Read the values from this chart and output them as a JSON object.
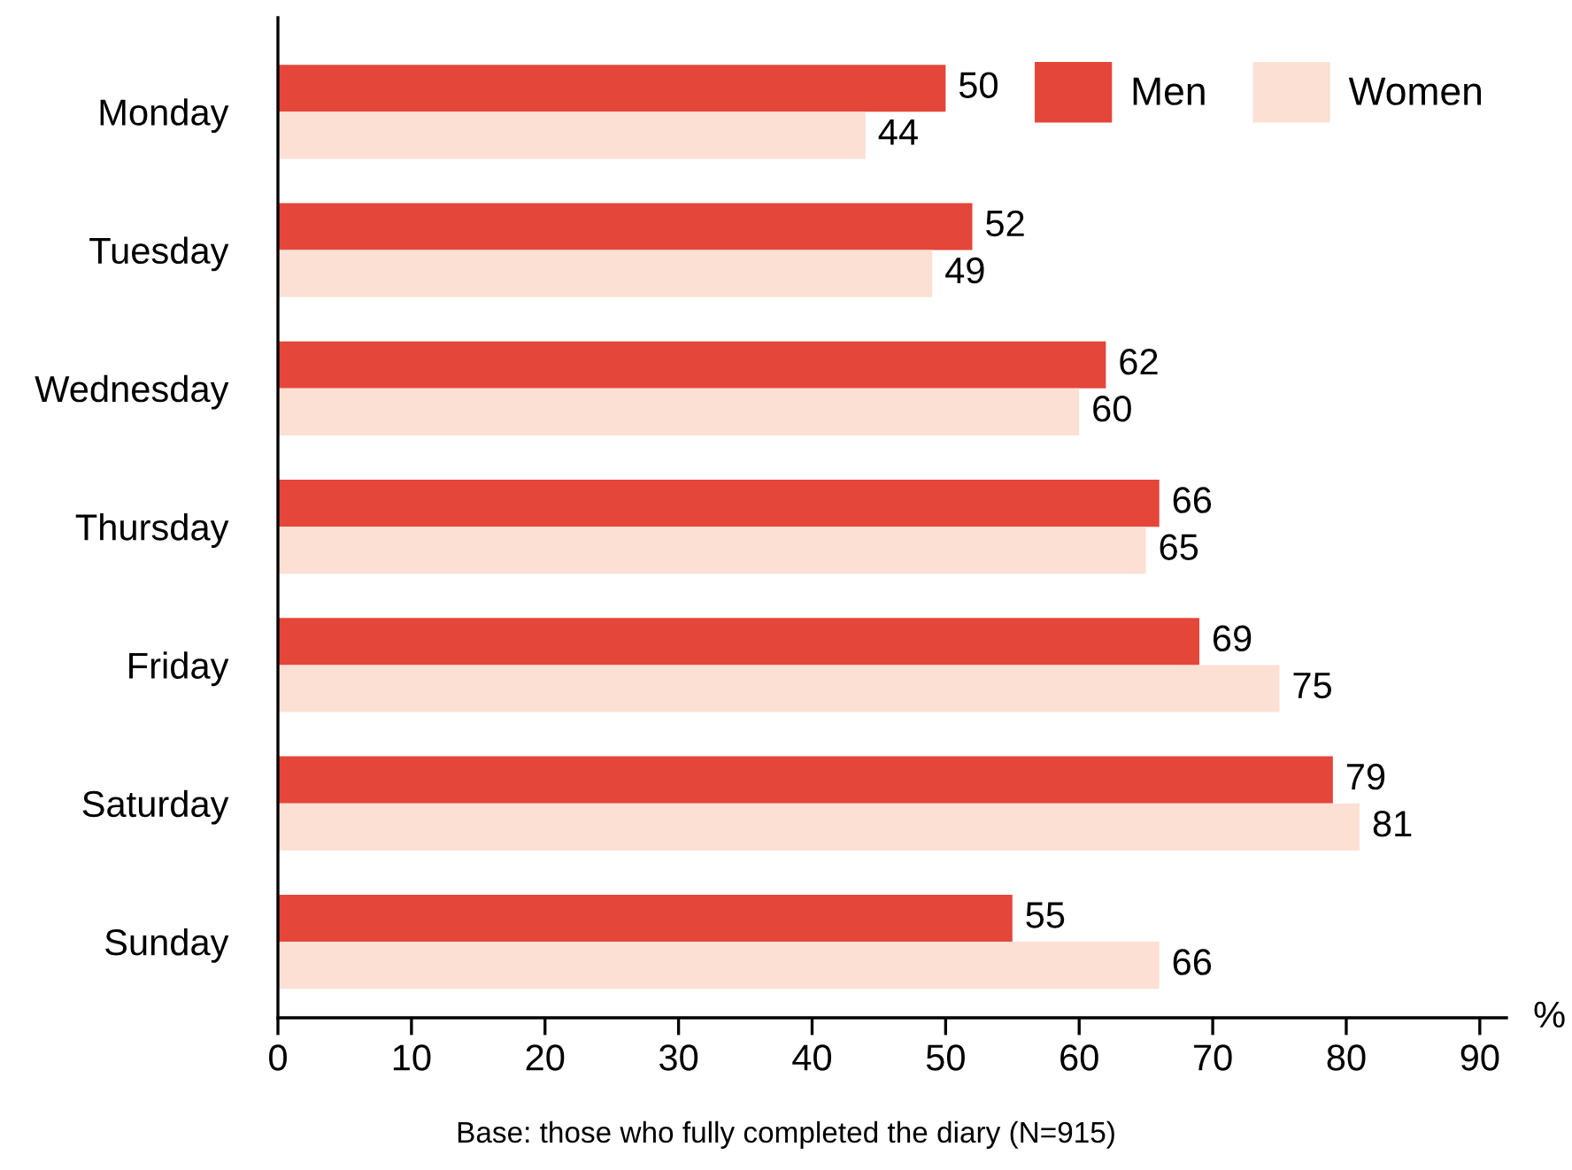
{
  "chart_data": {
    "type": "bar",
    "orientation": "horizontal",
    "categories": [
      "Monday",
      "Tuesday",
      "Wednesday",
      "Thursday",
      "Friday",
      "Saturday",
      "Sunday"
    ],
    "series": [
      {
        "name": "Men",
        "color": "#e5463a",
        "values": [
          50,
          52,
          62,
          66,
          69,
          79,
          55
        ]
      },
      {
        "name": "Women",
        "color": "#fce0d4",
        "values": [
          44,
          49,
          60,
          65,
          75,
          81,
          66
        ]
      }
    ],
    "xlim": [
      0,
      92
    ],
    "xticks": [
      0,
      10,
      20,
      30,
      40,
      50,
      60,
      70,
      80,
      90
    ],
    "xlabel": "%",
    "data_labels": true,
    "legend": "top right",
    "grid": false,
    "annotations": [
      "Base: those who fully completed the diary (N=915)"
    ]
  }
}
